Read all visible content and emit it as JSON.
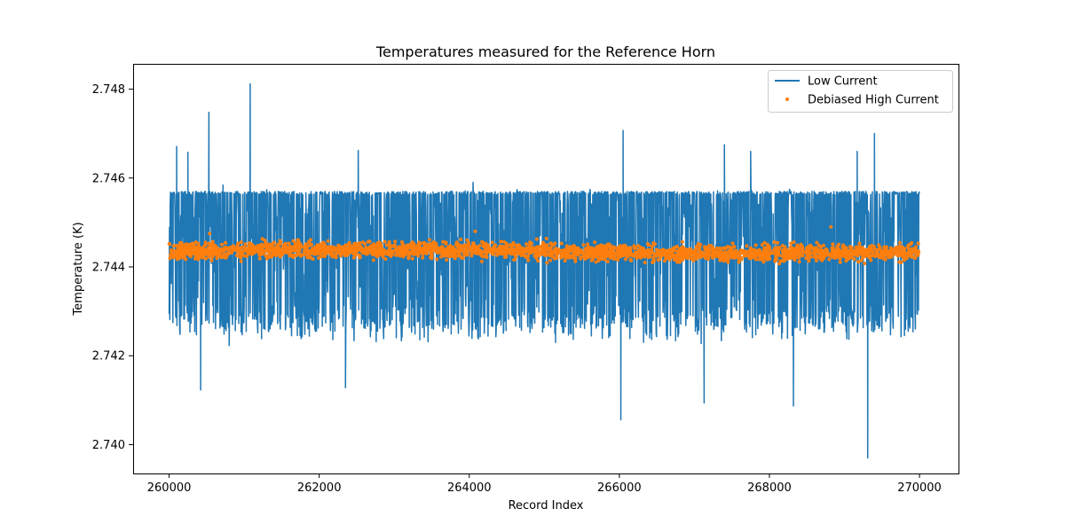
{
  "chart_data": {
    "type": "line",
    "title": "Temperatures measured for the Reference Horn",
    "xlabel": "Record Index",
    "ylabel": "Temperature (K)",
    "xlim": [
      259520,
      270520
    ],
    "ylim": [
      2.73935,
      2.74857
    ],
    "x_ticks": [
      260000,
      262000,
      264000,
      266000,
      268000,
      270000
    ],
    "x_tick_labels": [
      "260000",
      "262000",
      "264000",
      "266000",
      "268000",
      "270000"
    ],
    "y_ticks": [
      2.74,
      2.742,
      2.744,
      2.746,
      2.748
    ],
    "y_tick_labels": [
      "2.740",
      "2.742",
      "2.744",
      "2.746",
      "2.748"
    ],
    "grid": false,
    "legend_position": "top-right",
    "series": [
      {
        "name": "Low Current",
        "kind": "line",
        "color": "#1f77b4",
        "x_range": [
          260000,
          270000
        ],
        "mean": 2.7443,
        "band": [
          2.7428,
          2.7457
        ],
        "notable_points": [
          {
            "x": 261080,
            "y": 2.74812
          },
          {
            "x": 260530,
            "y": 2.74748
          },
          {
            "x": 266050,
            "y": 2.74707
          },
          {
            "x": 269400,
            "y": 2.747
          },
          {
            "x": 267400,
            "y": 2.74675
          },
          {
            "x": 260100,
            "y": 2.74671
          },
          {
            "x": 260250,
            "y": 2.74658
          },
          {
            "x": 262520,
            "y": 2.74662
          },
          {
            "x": 269170,
            "y": 2.7466
          },
          {
            "x": 267750,
            "y": 2.7466
          },
          {
            "x": 269310,
            "y": 2.7397
          },
          {
            "x": 266020,
            "y": 2.74056
          },
          {
            "x": 268320,
            "y": 2.74087
          },
          {
            "x": 267130,
            "y": 2.74094
          },
          {
            "x": 260420,
            "y": 2.74123
          },
          {
            "x": 262350,
            "y": 2.74128
          }
        ]
      },
      {
        "name": "Debiased High Current",
        "kind": "scatter",
        "color": "#ff7f0e",
        "x_range": [
          260000,
          270000
        ],
        "mean": 2.74435,
        "band": [
          2.7441,
          2.7446
        ],
        "notable_points": [
          {
            "x": 268820,
            "y": 2.7449
          },
          {
            "x": 264080,
            "y": 2.7448
          },
          {
            "x": 260540,
            "y": 2.74475
          }
        ]
      }
    ]
  }
}
